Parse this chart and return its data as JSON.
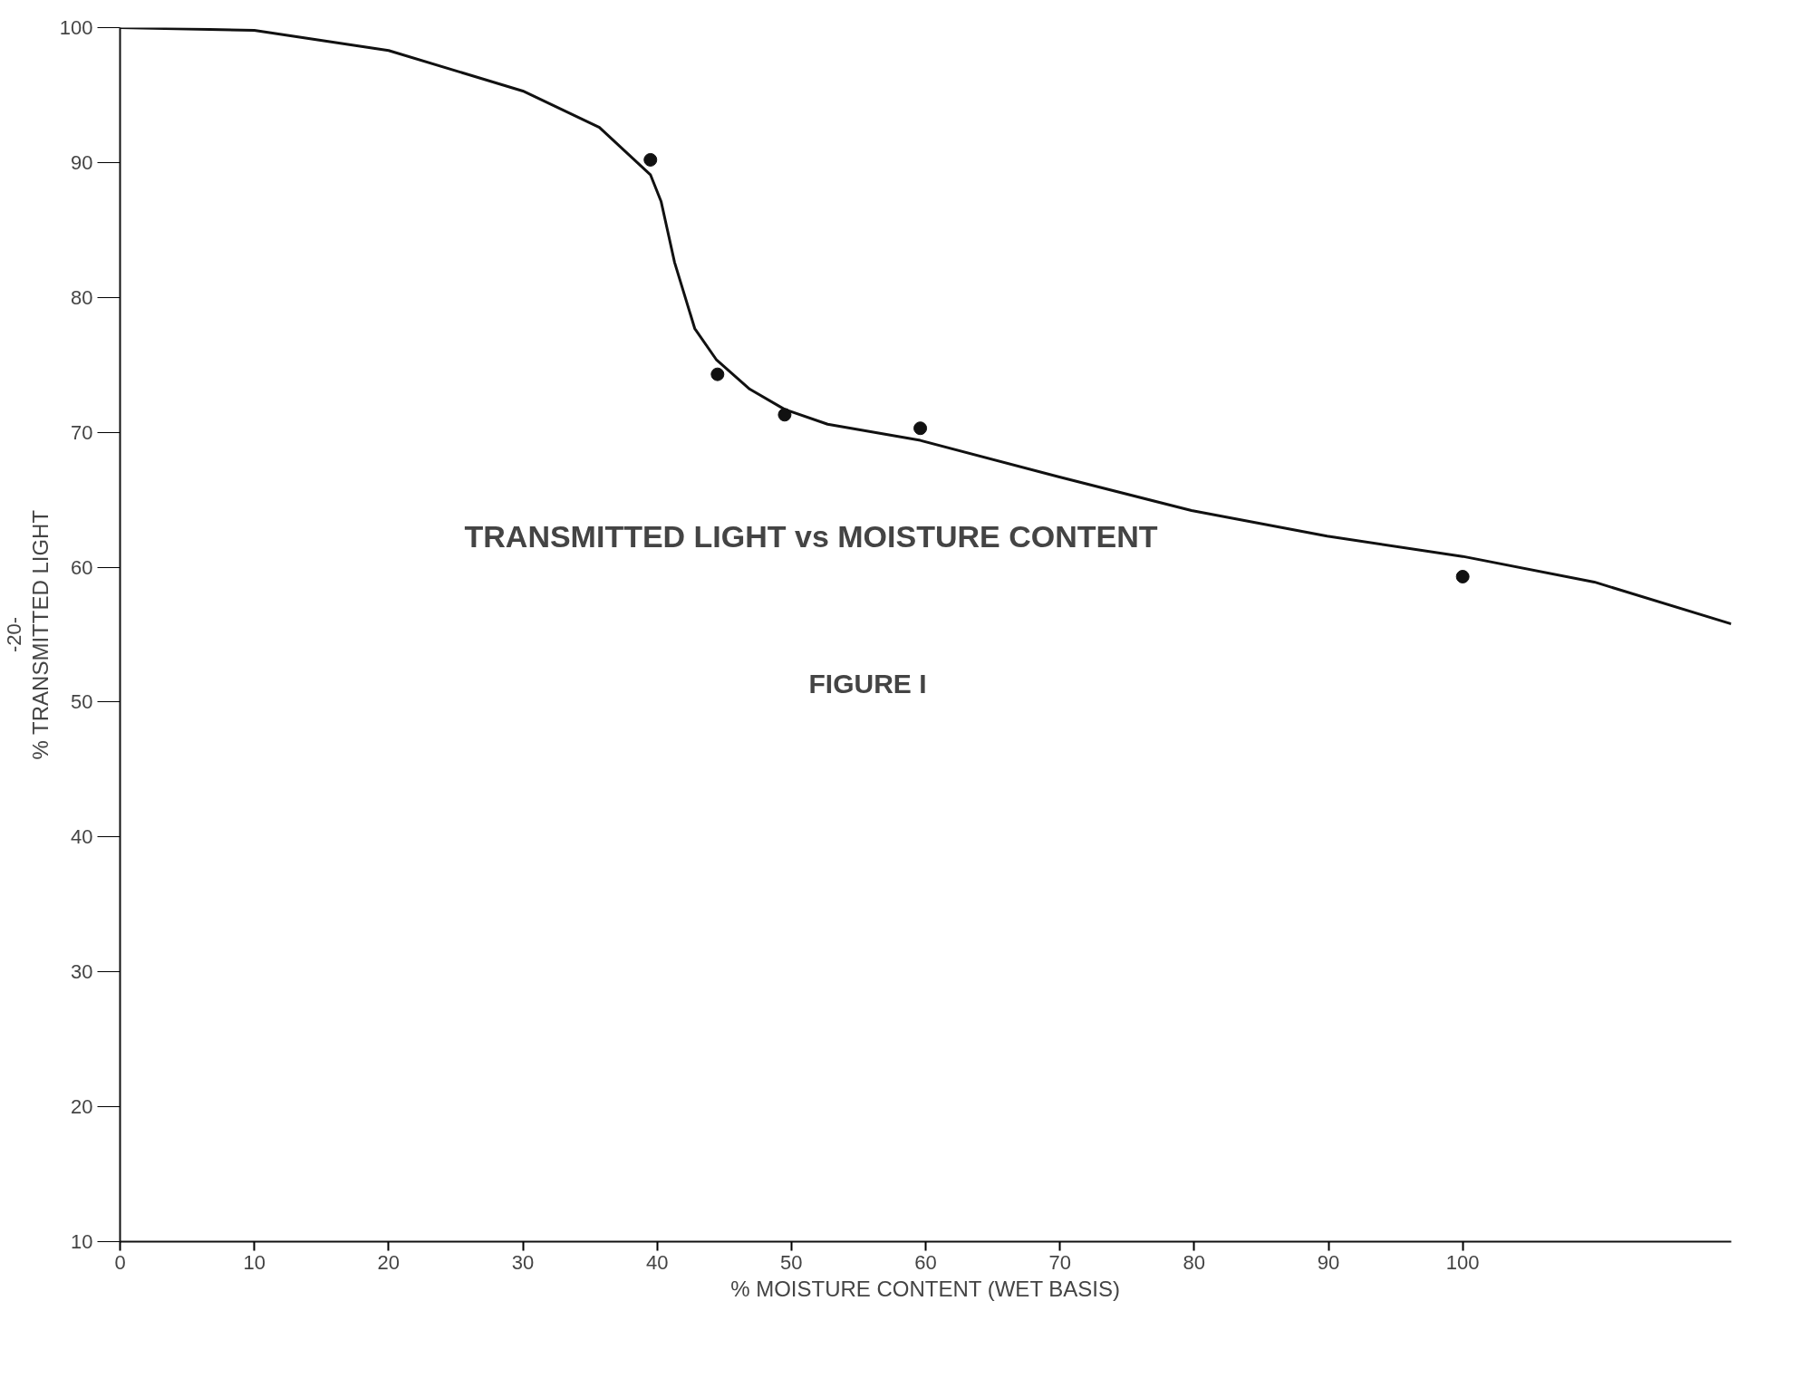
{
  "chart_data": {
    "type": "scatter",
    "title": "TRANSMITTED LIGHT vs MOISTURE CONTENT",
    "xlabel": "% MOISTURE CONTENT (WET BASIS)",
    "ylabel": "% TRANSMITTED LIGHT",
    "annotations": [
      "FIGURE I",
      "-20-"
    ],
    "xlim": [
      0,
      120
    ],
    "ylim": [
      10,
      100
    ],
    "xticks": [
      0,
      10,
      20,
      30,
      40,
      50,
      60,
      70,
      80,
      90,
      100
    ],
    "yticks": [
      10,
      20,
      30,
      40,
      50,
      60,
      70,
      80,
      90,
      100
    ],
    "grid": false,
    "marker": "circle",
    "series": [
      {
        "color": "#111111",
        "x": [
          39.5,
          44.5,
          49.5,
          59.6,
          100
        ],
        "values": [
          90.2,
          74.3,
          71.3,
          70.3,
          59.3
        ]
      },
      {
        "type": "line",
        "color": "#111111",
        "line_style": "solid",
        "marker": "none",
        "x": [
          0,
          10,
          20,
          30,
          35.7,
          39.5,
          40.3,
          41.3,
          42.8,
          44.4,
          46.9,
          49.5,
          52.7,
          59.6,
          69.9,
          79.8,
          89.9,
          100,
          109.8,
          120
        ],
        "values": [
          100,
          99.8,
          98.3,
          95.3,
          92.6,
          89.1,
          87.1,
          82.6,
          77.7,
          75.4,
          73.2,
          71.7,
          70.6,
          69.4,
          66.7,
          64.2,
          62.3,
          60.8,
          58.9,
          55.8
        ]
      }
    ]
  }
}
